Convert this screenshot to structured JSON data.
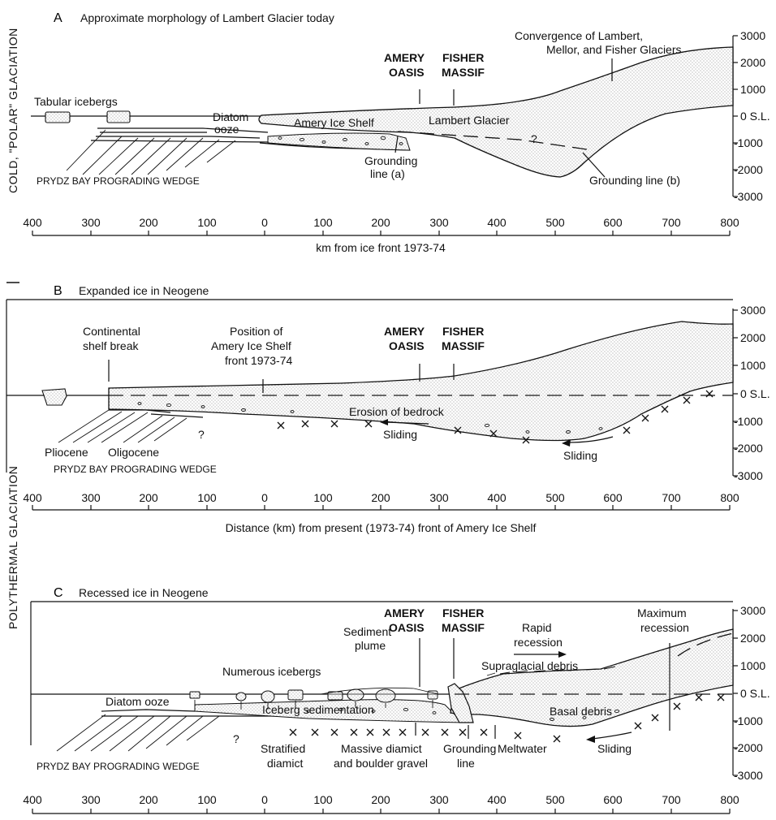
{
  "side_labels": {
    "upper": "COLD, \"POLAR\" GLACIATION",
    "lower": "POLYTHERMAL GLACIATION"
  },
  "panels": {
    "a": {
      "letter": "A",
      "title": "Approximate morphology of Lambert Glacier today",
      "labels": {
        "tabular_icebergs": "Tabular icebergs",
        "diatom": "Diatom",
        "ooze": "ooze",
        "amery_ice_shelf": "Amery Ice Shelf",
        "lambert_glacier": "Lambert Glacier",
        "amery": "AMERY",
        "oasis": "OASIS",
        "fisher": "FISHER",
        "massif": "MASSIF",
        "convergence_1": "Convergence of Lambert,",
        "convergence_2": "Mellor, and Fisher Glaciers",
        "grounding_a_1": "Grounding",
        "grounding_a_2": "line (a)",
        "grounding_b": "Grounding line (b)",
        "question": "?",
        "wedge": "PRYDZ BAY PROGRADING WEDGE"
      },
      "xlabel": "km from ice front 1973-74"
    },
    "b": {
      "letter": "B",
      "title": "Expanded ice in Neogene",
      "labels": {
        "shelf_break_1": "Continental",
        "shelf_break_2": "shelf break",
        "position_1": "Position of",
        "position_2": "Amery Ice Shelf",
        "position_3": "front 1973-74",
        "amery": "AMERY",
        "oasis": "OASIS",
        "fisher": "FISHER",
        "massif": "MASSIF",
        "erosion": "Erosion of bedrock",
        "sliding_1": "Sliding",
        "sliding_2": "Sliding",
        "pliocene": "Pliocene",
        "oligocene": "Oligocene",
        "question": "?",
        "wedge": "PRYDZ BAY PROGRADING WEDGE"
      },
      "xlabel": "Distance (km) from present (1973-74) front of Amery Ice Shelf"
    },
    "c": {
      "letter": "C",
      "title": "Recessed ice in Neogene",
      "labels": {
        "amery": "AMERY",
        "oasis": "OASIS",
        "fisher": "FISHER",
        "massif": "MASSIF",
        "rapid_1": "Rapid",
        "rapid_2": "recession",
        "max_1": "Maximum",
        "max_2": "recession",
        "sediment_1": "Sediment",
        "sediment_2": "plume",
        "numerous": "Numerous icebergs",
        "supraglacial": "Supraglacial debris",
        "diatom_ooze": "Diatom ooze",
        "iceberg_sed": "Iceberg sedimentation",
        "basal": "Basal debris",
        "stratified_1": "Stratified",
        "stratified_2": "diamict",
        "massive_1": "Massive diamict",
        "massive_2": "and boulder gravel",
        "grounding_1": "Grounding",
        "grounding_2": "line",
        "meltwater": "Meltwater",
        "sliding": "Sliding",
        "question": "?",
        "wedge": "PRYDZ BAY PROGRADING WEDGE"
      }
    }
  },
  "x_ticks": [
    "400",
    "300",
    "200",
    "100",
    "0",
    "100",
    "200",
    "300",
    "400",
    "500",
    "600",
    "700",
    "800"
  ],
  "y_ticks": [
    "3000",
    "2000",
    "1000",
    "0 S.L.",
    "-1000",
    "-2000",
    "-3000"
  ]
}
